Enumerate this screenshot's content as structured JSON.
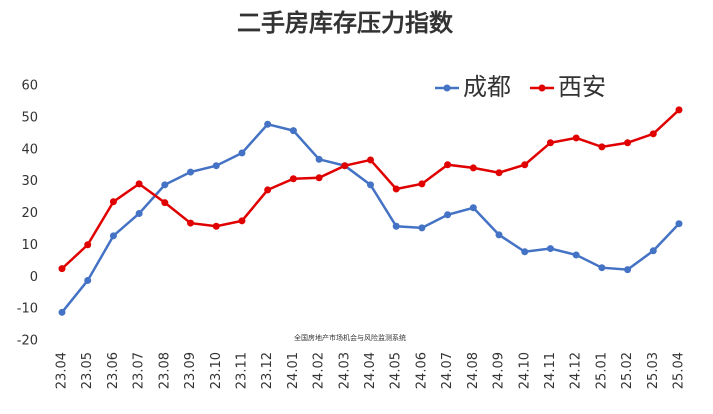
{
  "chart_data": {
    "type": "line",
    "title": "二手房库存压力指数",
    "categories": [
      "23.04",
      "23.05",
      "23.06",
      "23.07",
      "23.08",
      "23.09",
      "23.10",
      "23.11",
      "23.12",
      "24.01",
      "24.02",
      "24.03",
      "24.04",
      "24.05",
      "24.06",
      "24.07",
      "24.08",
      "24.09",
      "24.10",
      "24.11",
      "24.12",
      "25.01",
      "25.02",
      "25.03",
      "25.04"
    ],
    "series": [
      {
        "name": "成都",
        "color": "#4472c4",
        "values": [
          -11,
          -1,
          13,
          20,
          29,
          33,
          35,
          39,
          48,
          46,
          37,
          35,
          29,
          16,
          15.5,
          19.6,
          21.8,
          13.3,
          8,
          9,
          7,
          3,
          2.4,
          8.3,
          16.8
        ]
      },
      {
        "name": "西安",
        "color": "#e00000",
        "values": [
          2.7,
          10.2,
          23.7,
          29.3,
          23.4,
          17,
          16,
          17.7,
          27.4,
          30.9,
          31.2,
          35,
          36.8,
          27.7,
          29.3,
          35.3,
          34.3,
          32.8,
          35.3,
          42.2,
          43.7,
          40.9,
          42.2,
          45,
          52.5
        ]
      }
    ],
    "ylim": [
      -20,
      60
    ],
    "yticks": [
      -20,
      -10,
      0,
      10,
      20,
      30,
      40,
      50,
      60
    ],
    "grid": false,
    "legend": "top-right",
    "annotation": "全国房地产市场机会与风险监测系统"
  }
}
